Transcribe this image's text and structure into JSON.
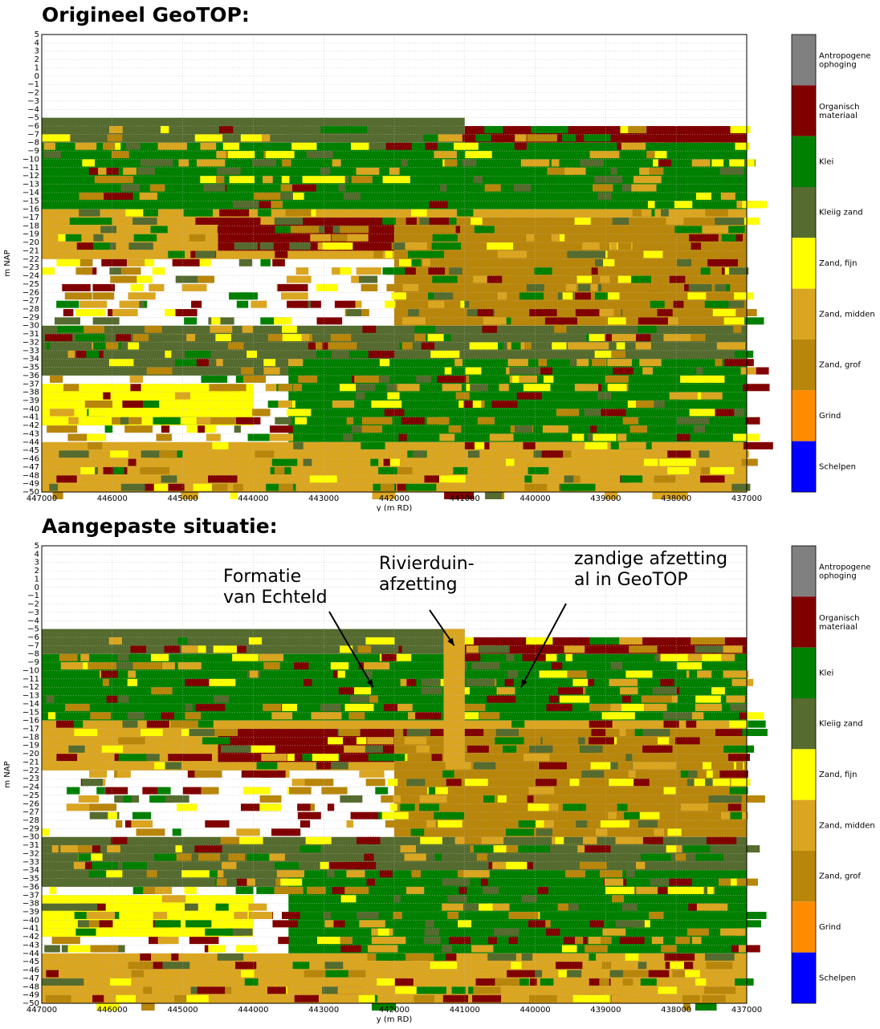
{
  "panels": [
    {
      "title": "Origineel GeoTOP:"
    },
    {
      "title": "Aangepaste situatie:"
    }
  ],
  "legend": [
    {
      "label": "Antropogene ophoging",
      "color": "#808080"
    },
    {
      "label": "Organisch materiaal",
      "color": "#800000"
    },
    {
      "label": "Klei",
      "color": "#008000"
    },
    {
      "label": "Kleiig zand",
      "color": "#556b2f"
    },
    {
      "label": "Zand, fijn",
      "color": "#ffff00"
    },
    {
      "label": "Zand, midden",
      "color": "#daa520"
    },
    {
      "label": "Zand, grof",
      "color": "#b8860b"
    },
    {
      "label": "Grind",
      "color": "#ff8c00"
    },
    {
      "label": "Schelpen",
      "color": "#0000ff"
    }
  ],
  "annotations": [
    {
      "text": [
        "Formatie",
        "van Echteld"
      ],
      "x": 442300,
      "y": -12
    },
    {
      "text": [
        "Rivierduin-",
        "afzetting"
      ],
      "x": 441150,
      "y": -7
    },
    {
      "text": [
        "zandige afzetting",
        "al in GeoTOP"
      ],
      "x": 440200,
      "y": -12
    }
  ],
  "chart_data": {
    "type": "heatmap",
    "xlabel": "y (m RD)",
    "ylabel": "m NAP",
    "xlim": [
      447000,
      437000
    ],
    "ylim": [
      -50,
      5
    ],
    "xticks": [
      "447000",
      "446000",
      "445000",
      "444000",
      "443000",
      "442000",
      "441000",
      "440000",
      "439000",
      "438000",
      "437000"
    ],
    "grid": true,
    "legend_position": "right",
    "classes": [
      "Antropogene ophoging",
      "Organisch materiaal",
      "Klei",
      "Kleiig zand",
      "Zand, fijn",
      "Zand, midden",
      "Zand, grof",
      "Grind",
      "Schelpen"
    ],
    "layers": [
      {
        "x": [
          447000,
          441000
        ],
        "top": -5,
        "bottom": -8,
        "class": "Kleiig zand"
      },
      {
        "x": [
          441000,
          437000
        ],
        "top": -6,
        "bottom": -8,
        "class": "Organisch materiaal"
      },
      {
        "x": [
          447000,
          437000
        ],
        "top": -8,
        "bottom": -16,
        "class": "Klei"
      },
      {
        "x": [
          447000,
          437000
        ],
        "top": -16,
        "bottom": -22,
        "class": "Zand, midden"
      },
      {
        "x": [
          444500,
          442000
        ],
        "top": -17,
        "bottom": -21,
        "class": "Organisch materiaal"
      },
      {
        "x": [
          442000,
          437000
        ],
        "top": -17,
        "bottom": -30,
        "class": "Zand, grof"
      },
      {
        "x": [
          447000,
          437000
        ],
        "top": -30,
        "bottom": -36,
        "class": "Kleiig zand"
      },
      {
        "x": [
          443500,
          437000
        ],
        "top": -34,
        "bottom": -44,
        "class": "Klei"
      },
      {
        "x": [
          447000,
          444000
        ],
        "top": -37,
        "bottom": -42,
        "class": "Zand, fijn"
      },
      {
        "x": [
          447000,
          437000
        ],
        "top": -44,
        "bottom": -50,
        "class": "Zand, midden"
      }
    ]
  }
}
